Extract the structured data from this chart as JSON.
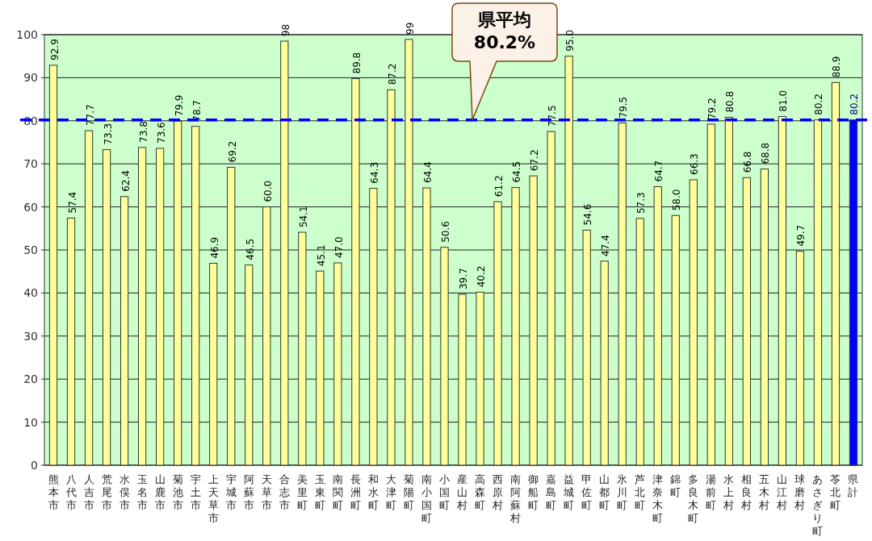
{
  "chart_data": {
    "type": "bar",
    "categories": [
      "熊本市",
      "八代市",
      "人吉市",
      "荒尾市",
      "水俣市",
      "玉名市",
      "山鹿市",
      "菊池市",
      "宇土市",
      "上天草市",
      "宇城市",
      "阿蘇市",
      "天草市",
      "合志市",
      "美里町",
      "玉東町",
      "南関町",
      "長洲町",
      "和水町",
      "大津町",
      "菊陽町",
      "南小国町",
      "小国町",
      "産山村",
      "高森町",
      "西原村",
      "南阿蘇村",
      "御船町",
      "嘉島町",
      "益城町",
      "甲佐町",
      "山都町",
      "氷川町",
      "芦北町",
      "津奈木町",
      "錦町",
      "多良木町",
      "湯前町",
      "水上村",
      "相良村",
      "五木村",
      "山江村",
      "球磨村",
      "あさぎり町",
      "苓北町",
      "県計"
    ],
    "values": [
      92.9,
      57.4,
      77.7,
      73.3,
      62.4,
      73.8,
      73.6,
      79.9,
      78.7,
      46.9,
      69.2,
      46.5,
      60.0,
      98.5,
      54.1,
      45.1,
      47.0,
      89.8,
      64.3,
      87.2,
      98.9,
      64.4,
      50.6,
      39.7,
      40.2,
      61.2,
      64.5,
      67.2,
      77.5,
      95.0,
      54.6,
      47.4,
      79.5,
      57.3,
      64.7,
      58.0,
      66.3,
      79.2,
      80.8,
      66.8,
      68.8,
      81.0,
      49.7,
      80.2,
      88.9,
      80.2
    ],
    "value_labels": [
      "92.9",
      "57.4",
      "77.7",
      "73.3",
      "62.4",
      "73.8",
      "73.6",
      "79.9",
      "78.7",
      "46.9",
      "69.2",
      "46.5",
      "60.0",
      "98",
      "54.1",
      "45.1",
      "47.0",
      "89.8",
      "64.3",
      "87.2",
      "99",
      "64.4",
      "50.6",
      "39.7",
      "40.2",
      "61.2",
      "64.5",
      "67.2",
      "77.5",
      "95.0",
      "54.6",
      "47.4",
      "79.5",
      "57.3",
      "64.7",
      "58.0",
      "66.3",
      "79.2",
      "80.8",
      "66.8",
      "68.8",
      "81.0",
      "49.7",
      "80.2",
      "88.9",
      "80.2"
    ],
    "colors": [
      "#ffff99",
      "#ffff99",
      "#ffff99",
      "#ffff99",
      "#ffff99",
      "#ffff99",
      "#ffff99",
      "#ffff99",
      "#ffff99",
      "#ffff99",
      "#ffff99",
      "#ffff99",
      "#ffff99",
      "#ffff99",
      "#ffff99",
      "#ffff99",
      "#ffff99",
      "#ffff99",
      "#ffff99",
      "#ffff99",
      "#ffff99",
      "#ffff99",
      "#ffff99",
      "#ffff99",
      "#ffff99",
      "#ffff99",
      "#ffff99",
      "#ffff99",
      "#ffff99",
      "#ffff99",
      "#ffff99",
      "#ffff99",
      "#ffff99",
      "#ffff99",
      "#ffff99",
      "#ffff99",
      "#ffff99",
      "#ffff99",
      "#ffff99",
      "#ffff99",
      "#ffff99",
      "#ffff99",
      "#ffff99",
      "#ffff99",
      "#ffff99",
      "#0000ff"
    ],
    "ylim": [
      0,
      100
    ],
    "yticks": [
      0,
      10,
      20,
      30,
      40,
      50,
      60,
      70,
      80,
      90,
      100
    ],
    "grid": "y",
    "annotations": [
      "県平均 80.2%"
    ],
    "ref_lines": [
      {
        "axis": "y",
        "value": 80.2,
        "color": "#0000ff",
        "line_style": "dashed"
      }
    ]
  }
}
